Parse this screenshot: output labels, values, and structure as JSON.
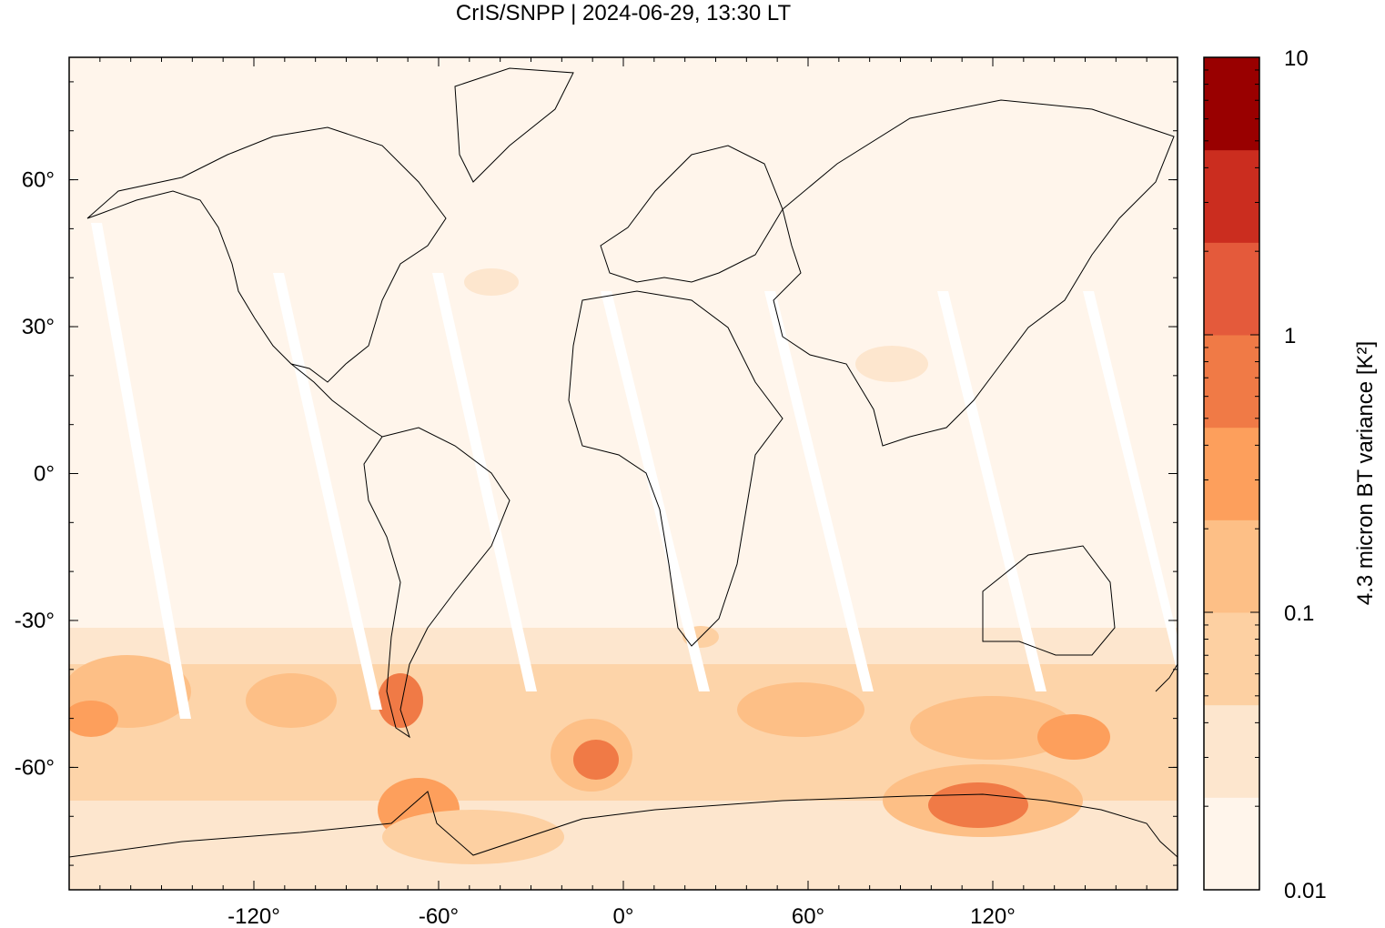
{
  "title": "CrIS/SNPP | 2024-06-29, 13:30 LT",
  "colors": {
    "scale": [
      "#fff5eb",
      "#fde6ce",
      "#fdd0a2",
      "#fdbf86",
      "#fd9f5c",
      "#f07a46",
      "#e45a3b",
      "#cb2d1f",
      "#990000"
    ]
  },
  "chart_data": {
    "type": "heatmap",
    "title": "CrIS/SNPP | 2024-06-29, 13:30 LT",
    "xlabel": "",
    "ylabel": "",
    "xlim": [
      -180,
      180
    ],
    "ylim": [
      -85,
      85
    ],
    "x_ticks": [
      {
        "value": -120,
        "label": "-120°"
      },
      {
        "value": -60,
        "label": "-60°"
      },
      {
        "value": 0,
        "label": "0°"
      },
      {
        "value": 60,
        "label": "60°"
      },
      {
        "value": 120,
        "label": "120°"
      }
    ],
    "y_ticks": [
      {
        "value": 60,
        "label": "60°"
      },
      {
        "value": 30,
        "label": "30°"
      },
      {
        "value": 0,
        "label": "0°"
      },
      {
        "value": -30,
        "label": "-30°"
      },
      {
        "value": -60,
        "label": "-60°"
      }
    ],
    "colorbar": {
      "label": "4.3 micron BT variance [K²]",
      "scale": "log",
      "range": [
        0.01,
        10
      ],
      "ticks": [
        {
          "value": 0.01,
          "label": "0.01"
        },
        {
          "value": 0.1,
          "label": "0.1"
        },
        {
          "value": 1,
          "label": "1"
        },
        {
          "value": 10,
          "label": "10"
        }
      ]
    },
    "regions": [
      {
        "lat": [
          -85,
          -70
        ],
        "lon": [
          -30,
          60
        ],
        "level": 2
      },
      {
        "lat": [
          -72,
          -60
        ],
        "lon": [
          90,
          140
        ],
        "level": 4
      },
      {
        "lat": [
          -55,
          -45
        ],
        "lon": [
          -180,
          -150
        ],
        "level": 4
      },
      {
        "lat": [
          -65,
          -50
        ],
        "lon": [
          -20,
          0
        ],
        "level": 4
      },
      {
        "lat": [
          -72,
          -65
        ],
        "lon": [
          -62,
          -55
        ],
        "level": 5
      },
      {
        "lat": [
          -50,
          -45
        ],
        "lon": [
          -73,
          -68
        ],
        "level": 5
      },
      {
        "lat": [
          -60,
          -40
        ],
        "lon": [
          -180,
          180
        ],
        "level": 2
      }
    ]
  }
}
